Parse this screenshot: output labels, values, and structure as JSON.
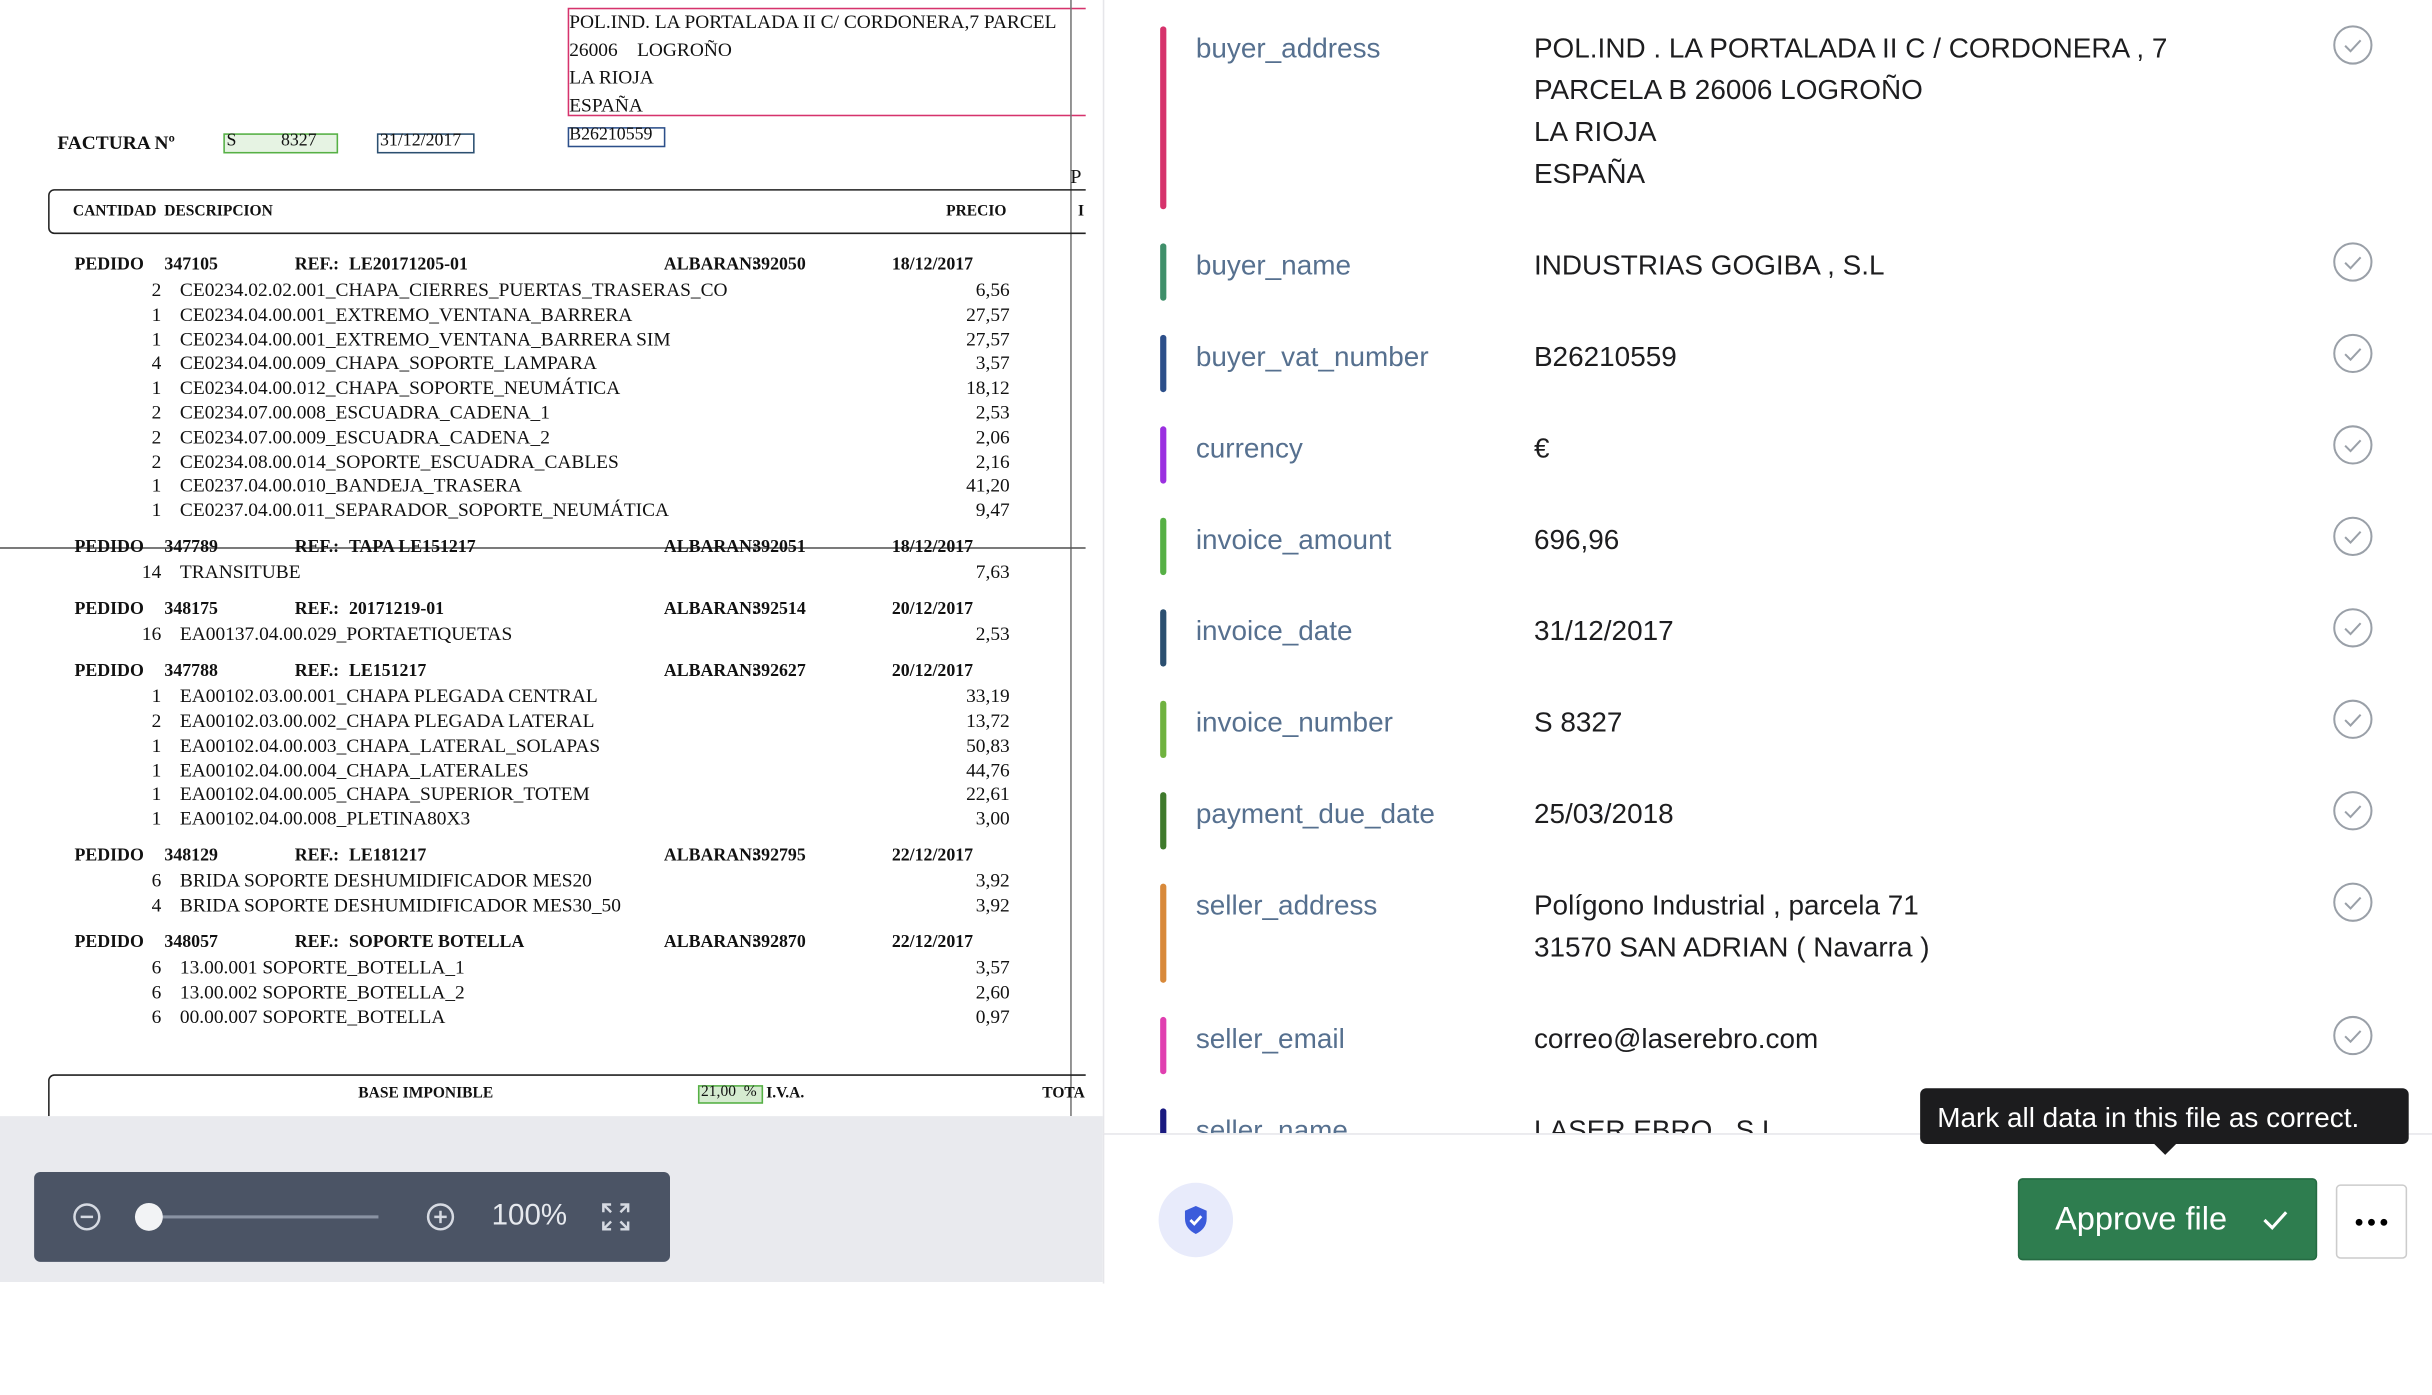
{
  "document": {
    "address_lines": [
      "POL.IND. LA PORTALADA II C/ CORDONERA,7 PARCEL",
      "26006    LOGROÑO",
      "LA RIOJA",
      "ESPAÑA"
    ],
    "invoice_label": "FACTURA Nº",
    "invoice_number": "S          8327",
    "invoice_date": "31/12/2017",
    "vat_number": "B26210559",
    "edge_letter": "P",
    "table_headers": {
      "quantity_description": "CANTIDAD  DESCRIPCION",
      "price": "PRECIO",
      "edge": "I"
    },
    "labels": {
      "order": "PEDIDO",
      "ref": "REF.:",
      "delivery": "ALBARAN:"
    },
    "orders": [
      {
        "number": "347105",
        "ref": "LE20171205-01",
        "delivery": "392050",
        "date": "18/12/2017",
        "items": [
          [
            "2",
            "CE0234.02.02.001_CHAPA_CIERRES_PUERTAS_TRASERAS_CO",
            "6,56"
          ],
          [
            "1",
            "CE0234.04.00.001_EXTREMO_VENTANA_BARRERA",
            "27,57"
          ],
          [
            "1",
            "CE0234.04.00.001_EXTREMO_VENTANA_BARRERA SIM",
            "27,57"
          ],
          [
            "4",
            "CE0234.04.00.009_CHAPA_SOPORTE_LAMPARA",
            "3,57"
          ],
          [
            "1",
            "CE0234.04.00.012_CHAPA_SOPORTE_NEUMÁTICA",
            "18,12"
          ],
          [
            "2",
            "CE0234.07.00.008_ESCUADRA_CADENA_1",
            "2,53"
          ],
          [
            "2",
            "CE0234.07.00.009_ESCUADRA_CADENA_2",
            "2,06"
          ],
          [
            "2",
            "CE0234.08.00.014_SOPORTE_ESCUADRA_CABLES",
            "2,16"
          ],
          [
            "1",
            "CE0237.04.00.010_BANDEJA_TRASERA",
            "41,20"
          ],
          [
            "1",
            "CE0237.04.00.011_SEPARADOR_SOPORTE_NEUMÁTICA",
            "9,47"
          ]
        ]
      },
      {
        "number": "347789",
        "ref": "TAPA LE151217",
        "delivery": "392051",
        "date": "18/12/2017",
        "items": [
          [
            "14",
            "TRANSITUBE",
            "7,63"
          ]
        ]
      },
      {
        "number": "348175",
        "ref": "20171219-01",
        "delivery": "392514",
        "date": "20/12/2017",
        "items": [
          [
            "16",
            "EA00137.04.00.029_PORTAETIQUETAS",
            "2,53"
          ]
        ]
      },
      {
        "number": "347788",
        "ref": "LE151217",
        "delivery": "392627",
        "date": "20/12/2017",
        "items": [
          [
            "1",
            "EA00102.03.00.001_CHAPA PLEGADA CENTRAL",
            "33,19"
          ],
          [
            "2",
            "EA00102.03.00.002_CHAPA PLEGADA LATERAL",
            "13,72"
          ],
          [
            "1",
            "EA00102.04.00.003_CHAPA_LATERAL_SOLAPAS",
            "50,83"
          ],
          [
            "1",
            "EA00102.04.00.004_CHAPA_LATERALES",
            "44,76"
          ],
          [
            "1",
            "EA00102.04.00.005_CHAPA_SUPERIOR_TOTEM",
            "22,61"
          ],
          [
            "1",
            "EA00102.04.00.008_PLETINA80X3",
            "3,00"
          ]
        ]
      },
      {
        "number": "348129",
        "ref": "LE181217",
        "delivery": "392795",
        "date": "22/12/2017",
        "items": [
          [
            "6",
            "BRIDA SOPORTE DESHUMIDIFICADOR MES20",
            "3,92"
          ],
          [
            "4",
            "BRIDA SOPORTE DESHUMIDIFICADOR MES30_50",
            "3,92"
          ]
        ]
      },
      {
        "number": "348057",
        "ref": "SOPORTE BOTELLA",
        "delivery": "392870",
        "date": "22/12/2017",
        "items": [
          [
            "6",
            "13.00.001 SOPORTE_BOTELLA_1",
            "3,57"
          ],
          [
            "6",
            "13.00.002 SOPORTE_BOTELLA_2",
            "2,60"
          ],
          [
            "6",
            "00.00.007 SOPORTE_BOTELLA",
            "0,97"
          ]
        ]
      }
    ],
    "footer": {
      "base": "BASE IMPONIBLE",
      "rate": "21,00  %",
      "vat": "I.V.A.",
      "total": "TOTA"
    }
  },
  "viewer": {
    "zoom": "100%"
  },
  "fields": [
    {
      "name": "buyer_address",
      "color": "#d6336c",
      "lines": [
        "POL.IND . LA PORTALADA II C / CORDONERA , 7",
        "PARCELA B 26006 LOGROÑO",
        "LA RIOJA",
        "ESPAÑA"
      ]
    },
    {
      "name": "buyer_name",
      "color": "#3f8f6a",
      "lines": [
        "INDUSTRIAS GOGIBA , S.L"
      ]
    },
    {
      "name": "buyer_vat_number",
      "color": "#2c4f8a",
      "lines": [
        "B26210559"
      ]
    },
    {
      "name": "currency",
      "color": "#9b30e0",
      "lines": [
        "€"
      ]
    },
    {
      "name": "invoice_amount",
      "color": "#56b045",
      "lines": [
        "696,96"
      ]
    },
    {
      "name": "invoice_date",
      "color": "#2b4f70",
      "lines": [
        "31/12/2017"
      ]
    },
    {
      "name": "invoice_number",
      "color": "#6fb23f",
      "lines": [
        "S 8327"
      ]
    },
    {
      "name": "payment_due_date",
      "color": "#3f7a2c",
      "lines": [
        "25/03/2018"
      ]
    },
    {
      "name": "seller_address",
      "color": "#d8893a",
      "lines": [
        "Polígono Industrial , parcela 71",
        "31570 SAN ADRIAN ( Navarra )"
      ]
    },
    {
      "name": "seller_email",
      "color": "#e03fb0",
      "lines": [
        "correo@laserebro.com"
      ]
    },
    {
      "name": "seller_name",
      "color": "#1a1a80",
      "lines": [
        "LASER EBRO , S.L"
      ]
    }
  ],
  "tooltip": "Mark all data in this file as correct.",
  "approve_button": "Approve file"
}
